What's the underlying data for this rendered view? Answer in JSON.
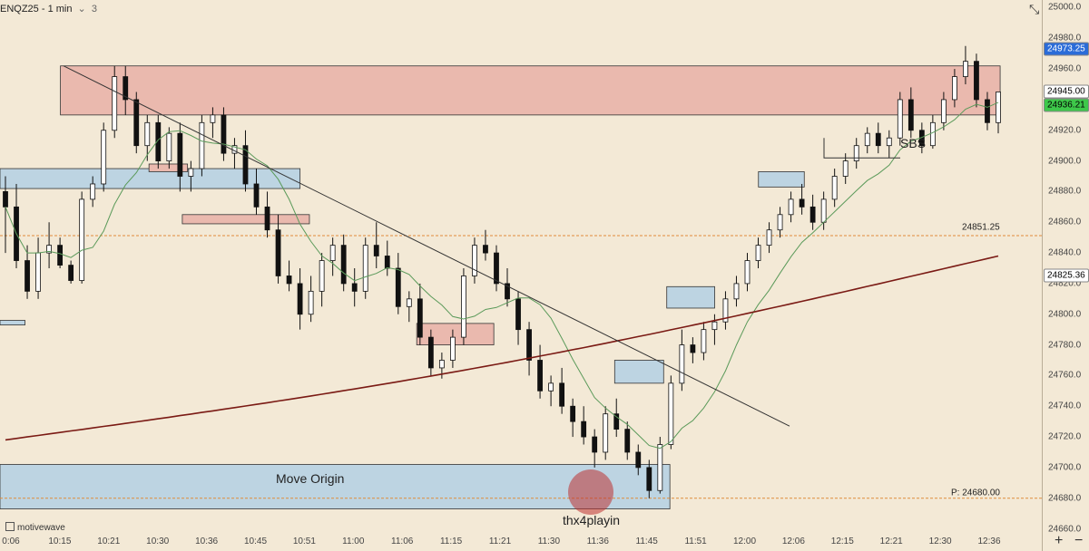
{
  "header": {
    "symbol": "ENQZ25 - 1 min",
    "count": "3"
  },
  "footer": {
    "logo_text": "motivewave"
  },
  "annotations": {
    "move_origin": "Move Origin",
    "sbs": "SBS",
    "signoff": "thx4playin",
    "level_label": "24851.25",
    "p_label": "P: 24680.00"
  },
  "price_tags": [
    {
      "value": "24973.25",
      "price": 24973.25,
      "bg": "#2b6cd8",
      "fg": "#ffffff"
    },
    {
      "value": "24945.00",
      "price": 24945.0,
      "bg": "#ffffff",
      "fg": "#000000"
    },
    {
      "value": "24936.21",
      "price": 24936.21,
      "bg": "#3ec84a",
      "fg": "#000000"
    },
    {
      "value": "24825.36",
      "price": 24825.36,
      "bg": "#ffffff",
      "fg": "#000000"
    }
  ],
  "colors": {
    "background": "#f3e9d6",
    "supply_zone": "#eab9ae",
    "demand_zone": "#bdd4e2",
    "ma_fast": "#5b9a5a",
    "ma_slow": "#7a1a14",
    "level_line": "#e08c3a"
  },
  "chart_data": {
    "type": "candlestick",
    "ylim": [
      24655,
      25005
    ],
    "yticks": [
      24660,
      24680,
      24700,
      24720,
      24740,
      24760,
      24780,
      24800,
      24820,
      24840,
      24860,
      24880,
      24900,
      24920,
      24940,
      24960,
      24980,
      25000
    ],
    "xticks": [
      "0:06",
      "10:15",
      "10:21",
      "10:30",
      "10:36",
      "10:45",
      "10:51",
      "11:00",
      "11:06",
      "11:15",
      "11:21",
      "11:30",
      "11:36",
      "11:45",
      "11:51",
      "12:00",
      "12:06",
      "12:15",
      "12:21",
      "12:30",
      "12:36"
    ],
    "candles_ohlc": [
      [
        24880,
        24890,
        24840,
        24870
      ],
      [
        24870,
        24885,
        24830,
        24835
      ],
      [
        24835,
        24845,
        24810,
        24815
      ],
      [
        24815,
        24850,
        24810,
        24840
      ],
      [
        24840,
        24860,
        24830,
        24845
      ],
      [
        24845,
        24850,
        24830,
        24832
      ],
      [
        24832,
        24835,
        24820,
        24822
      ],
      [
        24822,
        24880,
        24820,
        24875
      ],
      [
        24875,
        24890,
        24870,
        24885
      ],
      [
        24885,
        24925,
        24880,
        24920
      ],
      [
        24920,
        24962,
        24915,
        24955
      ],
      [
        24955,
        24962,
        24930,
        24940
      ],
      [
        24940,
        24945,
        24905,
        24910
      ],
      [
        24910,
        24930,
        24900,
        24925
      ],
      [
        24925,
        24930,
        24895,
        24900
      ],
      [
        24900,
        24922,
        24895,
        24918
      ],
      [
        24918,
        24925,
        24880,
        24890
      ],
      [
        24890,
        24900,
        24880,
        24895
      ],
      [
        24895,
        24930,
        24890,
        24925
      ],
      [
        24925,
        24935,
        24915,
        24930
      ],
      [
        24930,
        24935,
        24900,
        24905
      ],
      [
        24905,
        24915,
        24895,
        24910
      ],
      [
        24910,
        24920,
        24880,
        24885
      ],
      [
        24885,
        24895,
        24865,
        24870
      ],
      [
        24870,
        24880,
        24850,
        24855
      ],
      [
        24855,
        24865,
        24820,
        24825
      ],
      [
        24825,
        24835,
        24815,
        24820
      ],
      [
        24820,
        24830,
        24790,
        24800
      ],
      [
        24800,
        24825,
        24795,
        24815
      ],
      [
        24815,
        24840,
        24805,
        24835
      ],
      [
        24835,
        24850,
        24825,
        24845
      ],
      [
        24845,
        24852,
        24815,
        24820
      ],
      [
        24820,
        24830,
        24805,
        24815
      ],
      [
        24815,
        24850,
        24810,
        24845
      ],
      [
        24845,
        24860,
        24830,
        24838
      ],
      [
        24838,
        24848,
        24825,
        24830
      ],
      [
        24830,
        24840,
        24800,
        24805
      ],
      [
        24805,
        24815,
        24795,
        24810
      ],
      [
        24810,
        24820,
        24780,
        24785
      ],
      [
        24785,
        24790,
        24760,
        24765
      ],
      [
        24765,
        24775,
        24758,
        24770
      ],
      [
        24770,
        24790,
        24765,
        24785
      ],
      [
        24785,
        24830,
        24780,
        24825
      ],
      [
        24825,
        24850,
        24820,
        24845
      ],
      [
        24845,
        24855,
        24835,
        24840
      ],
      [
        24840,
        24845,
        24815,
        24820
      ],
      [
        24820,
        24830,
        24805,
        24810
      ],
      [
        24810,
        24815,
        24780,
        24790
      ],
      [
        24790,
        24795,
        24760,
        24770
      ],
      [
        24770,
        24780,
        24745,
        24750
      ],
      [
        24750,
        24760,
        24740,
        24755
      ],
      [
        24755,
        24765,
        24735,
        24740
      ],
      [
        24740,
        24745,
        24720,
        24730
      ],
      [
        24730,
        24740,
        24715,
        24720
      ],
      [
        24720,
        24725,
        24700,
        24710
      ],
      [
        24710,
        24740,
        24705,
        24735
      ],
      [
        24735,
        24745,
        24720,
        24725
      ],
      [
        24725,
        24730,
        24705,
        24710
      ],
      [
        24710,
        24715,
        24695,
        24700
      ],
      [
        24700,
        24705,
        24680,
        24685
      ],
      [
        24685,
        24720,
        24683,
        24715
      ],
      [
        24715,
        24760,
        24712,
        24755
      ],
      [
        24755,
        24790,
        24750,
        24780
      ],
      [
        24780,
        24785,
        24768,
        24775
      ],
      [
        24775,
        24795,
        24770,
        24790
      ],
      [
        24790,
        24800,
        24780,
        24795
      ],
      [
        24795,
        24815,
        24790,
        24810
      ],
      [
        24810,
        24825,
        24805,
        24820
      ],
      [
        24820,
        24840,
        24815,
        24835
      ],
      [
        24835,
        24850,
        24830,
        24845
      ],
      [
        24845,
        24860,
        24840,
        24855
      ],
      [
        24855,
        24870,
        24850,
        24865
      ],
      [
        24865,
        24880,
        24860,
        24875
      ],
      [
        24875,
        24885,
        24865,
        24870
      ],
      [
        24870,
        24878,
        24855,
        24860
      ],
      [
        24860,
        24880,
        24855,
        24875
      ],
      [
        24875,
        24895,
        24870,
        24890
      ],
      [
        24890,
        24905,
        24885,
        24900
      ],
      [
        24900,
        24915,
        24895,
        24910
      ],
      [
        24910,
        24922,
        24905,
        24918
      ],
      [
        24918,
        24925,
        24905,
        24910
      ],
      [
        24910,
        24920,
        24902,
        24915
      ],
      [
        24915,
        24945,
        24910,
        24940
      ],
      [
        24940,
        24948,
        24915,
        24920
      ],
      [
        24920,
        24925,
        24905,
        24910
      ],
      [
        24910,
        24930,
        24908,
        24925
      ],
      [
        24925,
        24945,
        24920,
        24940
      ],
      [
        24940,
        24960,
        24935,
        24955
      ],
      [
        24955,
        24975,
        24950,
        24965
      ],
      [
        24965,
        24970,
        24935,
        24940
      ],
      [
        24940,
        24945,
        24920,
        24925
      ],
      [
        24925,
        24945,
        24918,
        24945
      ]
    ],
    "zones": [
      {
        "kind": "supply",
        "from": 24962,
        "to": 24930,
        "x0": 0.058,
        "x1": 0.96
      },
      {
        "kind": "demand",
        "from": 24895,
        "to": 24882,
        "x0": 0.0,
        "x1": 0.288
      },
      {
        "kind": "supply",
        "from": 24898,
        "to": 24893,
        "x0": 0.143,
        "x1": 0.18
      },
      {
        "kind": "supply",
        "from": 24865,
        "to": 24859,
        "x0": 0.175,
        "x1": 0.297
      },
      {
        "kind": "demand",
        "from": 24796,
        "to": 24793,
        "x0": 0.0,
        "x1": 0.024
      },
      {
        "kind": "supply",
        "from": 24794,
        "to": 24780,
        "x0": 0.4,
        "x1": 0.474
      },
      {
        "kind": "demand",
        "from": 24818,
        "to": 24804,
        "x0": 0.64,
        "x1": 0.686
      },
      {
        "kind": "demand",
        "from": 24770,
        "to": 24755,
        "x0": 0.59,
        "x1": 0.637
      },
      {
        "kind": "demand",
        "from": 24893,
        "to": 24883,
        "x0": 0.728,
        "x1": 0.772
      },
      {
        "kind": "demand",
        "from": 24702,
        "to": 24673,
        "x0": 0.0,
        "x1": 0.643
      }
    ],
    "levels": [
      {
        "price": 24851.25,
        "style": "dashed"
      },
      {
        "price": 24680.0,
        "style": "dashed"
      }
    ]
  }
}
